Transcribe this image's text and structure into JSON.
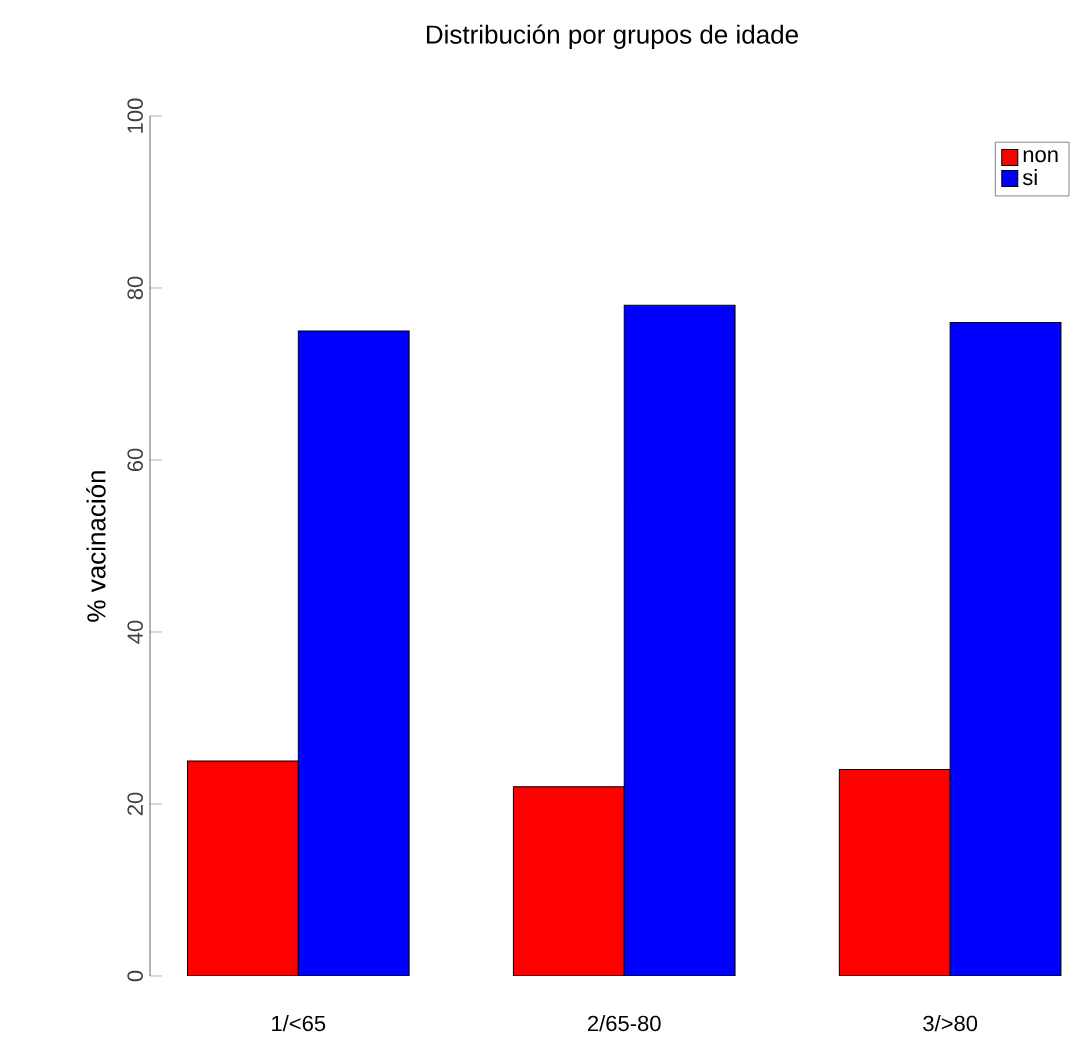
{
  "chart_data": {
    "type": "bar",
    "title": "Distribución por grupos de idade",
    "ylabel": "% vacinación",
    "categories": [
      "1/<65",
      "2/65-80",
      "3/>80"
    ],
    "series": [
      {
        "name": "non",
        "color": "#ff0000",
        "values": [
          25,
          22,
          24
        ]
      },
      {
        "name": "si",
        "color": "#0000ff",
        "values": [
          75,
          78,
          76
        ]
      }
    ],
    "ylim": [
      0,
      100
    ],
    "yticks": [
      0,
      20,
      40,
      60,
      80,
      100
    ],
    "legend": "top right"
  }
}
